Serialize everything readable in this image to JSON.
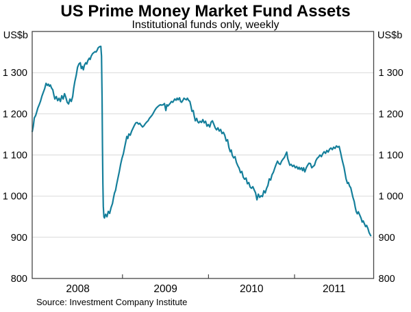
{
  "chart_data": {
    "type": "line",
    "title": "US Prime Money Market Fund Assets",
    "subtitle": "Institutional funds only, weekly",
    "unit_label_left": "US$b",
    "unit_label_right": "US$b",
    "source": "Source: Investment Company Institute",
    "xlim": [
      2007.95,
      2011.92
    ],
    "ylim": [
      800,
      1400
    ],
    "grid": "horizontal-light",
    "legend": "none",
    "colors": {
      "line": "#157f9b",
      "grid": "#d9d9d9",
      "frame": "#444444",
      "text": "#000000"
    },
    "y_ticks": [
      {
        "value": 800,
        "label": "800"
      },
      {
        "value": 900,
        "label": "900"
      },
      {
        "value": 1000,
        "label": "1 000"
      },
      {
        "value": 1100,
        "label": "1 100"
      },
      {
        "value": 1200,
        "label": "1 200"
      },
      {
        "value": 1300,
        "label": "1 300"
      }
    ],
    "x_year_boundaries": [
      2009,
      2010,
      2011
    ],
    "x_tick_labels": [
      {
        "label": "2008",
        "center": 2008.48
      },
      {
        "label": "2009",
        "center": 2009.5
      },
      {
        "label": "2010",
        "center": 2010.5
      },
      {
        "label": "2011",
        "center": 2011.46
      }
    ],
    "series": [
      {
        "name": "US prime money market fund assets (institutional, weekly)",
        "points": [
          [
            2007.951,
            1157
          ],
          [
            2007.963,
            1170
          ],
          [
            2007.975,
            1190
          ],
          [
            2007.991,
            1196
          ],
          [
            2008.003,
            1205
          ],
          [
            2008.015,
            1214
          ],
          [
            2008.031,
            1222
          ],
          [
            2008.047,
            1231
          ],
          [
            2008.063,
            1243
          ],
          [
            2008.079,
            1252
          ],
          [
            2008.095,
            1261
          ],
          [
            2008.111,
            1274
          ],
          [
            2008.126,
            1269
          ],
          [
            2008.138,
            1272
          ],
          [
            2008.15,
            1267
          ],
          [
            2008.162,
            1270
          ],
          [
            2008.174,
            1263
          ],
          [
            2008.19,
            1258
          ],
          [
            2008.202,
            1246
          ],
          [
            2008.214,
            1236
          ],
          [
            2008.23,
            1242
          ],
          [
            2008.246,
            1232
          ],
          [
            2008.262,
            1238
          ],
          [
            2008.278,
            1230
          ],
          [
            2008.294,
            1244
          ],
          [
            2008.31,
            1236
          ],
          [
            2008.326,
            1249
          ],
          [
            2008.341,
            1240
          ],
          [
            2008.357,
            1228
          ],
          [
            2008.373,
            1224
          ],
          [
            2008.389,
            1236
          ],
          [
            2008.405,
            1230
          ],
          [
            2008.421,
            1242
          ],
          [
            2008.433,
            1262
          ],
          [
            2008.445,
            1278
          ],
          [
            2008.461,
            1293
          ],
          [
            2008.477,
            1313
          ],
          [
            2008.493,
            1321
          ],
          [
            2008.509,
            1324
          ],
          [
            2008.521,
            1310
          ],
          [
            2008.533,
            1315
          ],
          [
            2008.545,
            1307
          ],
          [
            2008.557,
            1318
          ],
          [
            2008.573,
            1324
          ],
          [
            2008.585,
            1321
          ],
          [
            2008.597,
            1329
          ],
          [
            2008.613,
            1335
          ],
          [
            2008.624,
            1332
          ],
          [
            2008.636,
            1340
          ],
          [
            2008.652,
            1346
          ],
          [
            2008.668,
            1349
          ],
          [
            2008.68,
            1351
          ],
          [
            2008.692,
            1350
          ],
          [
            2008.704,
            1354
          ],
          [
            2008.716,
            1360
          ],
          [
            2008.732,
            1363
          ],
          [
            2008.748,
            1364
          ],
          [
            2008.756,
            1340
          ],
          [
            2008.762,
            1240
          ],
          [
            2008.767,
            1120
          ],
          [
            2008.772,
            1030
          ],
          [
            2008.777,
            975
          ],
          [
            2008.784,
            950
          ],
          [
            2008.79,
            947
          ],
          [
            2008.804,
            956
          ],
          [
            2008.82,
            950
          ],
          [
            2008.835,
            963
          ],
          [
            2008.851,
            958
          ],
          [
            2008.867,
            972
          ],
          [
            2008.883,
            982
          ],
          [
            2008.895,
            996
          ],
          [
            2008.907,
            1008
          ],
          [
            2008.919,
            1014
          ],
          [
            2008.931,
            1028
          ],
          [
            2008.947,
            1044
          ],
          [
            2008.963,
            1060
          ],
          [
            2008.979,
            1078
          ],
          [
            2008.994,
            1092
          ],
          [
            2009.01,
            1103
          ],
          [
            2009.026,
            1120
          ],
          [
            2009.042,
            1136
          ],
          [
            2009.05,
            1145
          ],
          [
            2009.062,
            1140
          ],
          [
            2009.074,
            1151
          ],
          [
            2009.09,
            1148
          ],
          [
            2009.106,
            1158
          ],
          [
            2009.122,
            1165
          ],
          [
            2009.138,
            1172
          ],
          [
            2009.154,
            1178
          ],
          [
            2009.17,
            1179
          ],
          [
            2009.186,
            1175
          ],
          [
            2009.201,
            1177
          ],
          [
            2009.217,
            1172
          ],
          [
            2009.233,
            1168
          ],
          [
            2009.249,
            1171
          ],
          [
            2009.265,
            1176
          ],
          [
            2009.281,
            1180
          ],
          [
            2009.297,
            1183
          ],
          [
            2009.313,
            1189
          ],
          [
            2009.329,
            1193
          ],
          [
            2009.345,
            1197
          ],
          [
            2009.361,
            1203
          ],
          [
            2009.377,
            1209
          ],
          [
            2009.393,
            1214
          ],
          [
            2009.408,
            1217
          ],
          [
            2009.424,
            1220
          ],
          [
            2009.44,
            1222
          ],
          [
            2009.456,
            1221
          ],
          [
            2009.472,
            1222
          ],
          [
            2009.488,
            1225
          ],
          [
            2009.504,
            1208
          ],
          [
            2009.516,
            1222
          ],
          [
            2009.528,
            1219
          ],
          [
            2009.544,
            1223
          ],
          [
            2009.556,
            1226
          ],
          [
            2009.568,
            1230
          ],
          [
            2009.584,
            1228
          ],
          [
            2009.596,
            1232
          ],
          [
            2009.607,
            1236
          ],
          [
            2009.623,
            1233
          ],
          [
            2009.635,
            1238
          ],
          [
            2009.647,
            1234
          ],
          [
            2009.663,
            1239
          ],
          [
            2009.675,
            1230
          ],
          [
            2009.687,
            1228
          ],
          [
            2009.703,
            1233
          ],
          [
            2009.715,
            1238
          ],
          [
            2009.727,
            1236
          ],
          [
            2009.743,
            1234
          ],
          [
            2009.755,
            1238
          ],
          [
            2009.767,
            1233
          ],
          [
            2009.783,
            1230
          ],
          [
            2009.795,
            1219
          ],
          [
            2009.807,
            1206
          ],
          [
            2009.822,
            1208
          ],
          [
            2009.834,
            1194
          ],
          [
            2009.846,
            1183
          ],
          [
            2009.862,
            1189
          ],
          [
            2009.874,
            1181
          ],
          [
            2009.886,
            1178
          ],
          [
            2009.902,
            1182
          ],
          [
            2009.918,
            1179
          ],
          [
            2009.934,
            1186
          ],
          [
            2009.95,
            1178
          ],
          [
            2009.966,
            1182
          ],
          [
            2009.982,
            1170
          ],
          [
            2009.998,
            1174
          ],
          [
            2010.014,
            1168
          ],
          [
            2010.03,
            1180
          ],
          [
            2010.045,
            1183
          ],
          [
            2010.061,
            1175
          ],
          [
            2010.077,
            1166
          ],
          [
            2010.093,
            1161
          ],
          [
            2010.109,
            1166
          ],
          [
            2010.125,
            1158
          ],
          [
            2010.141,
            1162
          ],
          [
            2010.157,
            1152
          ],
          [
            2010.173,
            1155
          ],
          [
            2010.189,
            1148
          ],
          [
            2010.205,
            1134
          ],
          [
            2010.221,
            1137
          ],
          [
            2010.237,
            1118
          ],
          [
            2010.252,
            1108
          ],
          [
            2010.264,
            1112
          ],
          [
            2010.276,
            1099
          ],
          [
            2010.292,
            1093
          ],
          [
            2010.308,
            1096
          ],
          [
            2010.324,
            1082
          ],
          [
            2010.34,
            1074
          ],
          [
            2010.356,
            1068
          ],
          [
            2010.372,
            1057
          ],
          [
            2010.388,
            1060
          ],
          [
            2010.404,
            1046
          ],
          [
            2010.42,
            1041
          ],
          [
            2010.436,
            1044
          ],
          [
            2010.452,
            1030
          ],
          [
            2010.468,
            1033
          ],
          [
            2010.484,
            1022
          ],
          [
            2010.499,
            1019
          ],
          [
            2010.515,
            1023
          ],
          [
            2010.531,
            1015
          ],
          [
            2010.547,
            1008
          ],
          [
            2010.563,
            991
          ],
          [
            2010.579,
            1005
          ],
          [
            2010.595,
            997
          ],
          [
            2010.611,
            1001
          ],
          [
            2010.627,
            999
          ],
          [
            2010.643,
            1013
          ],
          [
            2010.659,
            1008
          ],
          [
            2010.675,
            1019
          ],
          [
            2010.69,
            1026
          ],
          [
            2010.706,
            1042
          ],
          [
            2010.722,
            1039
          ],
          [
            2010.738,
            1052
          ],
          [
            2010.754,
            1058
          ],
          [
            2010.77,
            1068
          ],
          [
            2010.786,
            1077
          ],
          [
            2010.802,
            1085
          ],
          [
            2010.818,
            1079
          ],
          [
            2010.834,
            1077
          ],
          [
            2010.85,
            1085
          ],
          [
            2010.866,
            1090
          ],
          [
            2010.882,
            1094
          ],
          [
            2010.898,
            1102
          ],
          [
            2010.909,
            1107
          ],
          [
            2010.921,
            1091
          ],
          [
            2010.933,
            1083
          ],
          [
            2010.945,
            1075
          ],
          [
            2010.961,
            1077
          ],
          [
            2010.977,
            1072
          ],
          [
            2010.993,
            1075
          ],
          [
            2011.009,
            1069
          ],
          [
            2011.025,
            1072
          ],
          [
            2011.041,
            1066
          ],
          [
            2011.053,
            1070
          ],
          [
            2011.065,
            1065
          ],
          [
            2011.081,
            1069
          ],
          [
            2011.093,
            1062
          ],
          [
            2011.105,
            1069
          ],
          [
            2011.12,
            1059
          ],
          [
            2011.136,
            1069
          ],
          [
            2011.152,
            1075
          ],
          [
            2011.168,
            1080
          ],
          [
            2011.184,
            1079
          ],
          [
            2011.2,
            1069
          ],
          [
            2011.216,
            1072
          ],
          [
            2011.232,
            1075
          ],
          [
            2011.248,
            1086
          ],
          [
            2011.264,
            1092
          ],
          [
            2011.28,
            1095
          ],
          [
            2011.296,
            1100
          ],
          [
            2011.312,
            1096
          ],
          [
            2011.328,
            1103
          ],
          [
            2011.344,
            1108
          ],
          [
            2011.36,
            1104
          ],
          [
            2011.376,
            1111
          ],
          [
            2011.391,
            1107
          ],
          [
            2011.407,
            1114
          ],
          [
            2011.423,
            1117
          ],
          [
            2011.439,
            1113
          ],
          [
            2011.455,
            1119
          ],
          [
            2011.471,
            1116
          ],
          [
            2011.487,
            1122
          ],
          [
            2011.503,
            1119
          ],
          [
            2011.519,
            1121
          ],
          [
            2011.535,
            1106
          ],
          [
            2011.547,
            1094
          ],
          [
            2011.559,
            1083
          ],
          [
            2011.575,
            1070
          ],
          [
            2011.587,
            1056
          ],
          [
            2011.599,
            1042
          ],
          [
            2011.615,
            1031
          ],
          [
            2011.627,
            1033
          ],
          [
            2011.639,
            1025
          ],
          [
            2011.654,
            1020
          ],
          [
            2011.666,
            1009
          ],
          [
            2011.678,
            998
          ],
          [
            2011.694,
            987
          ],
          [
            2011.706,
            973
          ],
          [
            2011.718,
            962
          ],
          [
            2011.73,
            957
          ],
          [
            2011.742,
            962
          ],
          [
            2011.758,
            954
          ],
          [
            2011.774,
            946
          ],
          [
            2011.786,
            937
          ],
          [
            2011.798,
            940
          ],
          [
            2011.814,
            932
          ],
          [
            2011.826,
            926
          ],
          [
            2011.838,
            929
          ],
          [
            2011.854,
            921
          ],
          [
            2011.866,
            912
          ],
          [
            2011.878,
            907
          ],
          [
            2011.886,
            904
          ]
        ]
      }
    ]
  }
}
